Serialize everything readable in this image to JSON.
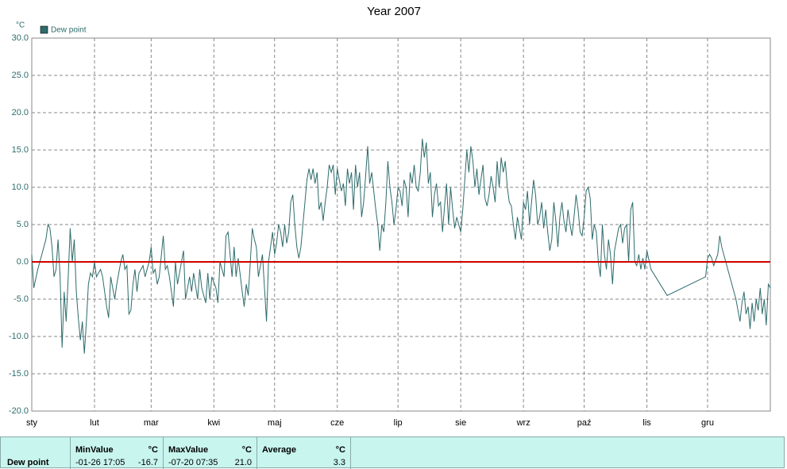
{
  "chart_data": {
    "type": "line",
    "title": "Year 2007",
    "y_unit": "°C",
    "xlim": [
      0,
      365
    ],
    "xticks": [
      {
        "value": 0,
        "label": "sty"
      },
      {
        "value": 31,
        "label": "lut"
      },
      {
        "value": 59,
        "label": "mar"
      },
      {
        "value": 90,
        "label": "kwi"
      },
      {
        "value": 120,
        "label": "maj"
      },
      {
        "value": 151,
        "label": "cze"
      },
      {
        "value": 181,
        "label": "lip"
      },
      {
        "value": 212,
        "label": "sie"
      },
      {
        "value": 243,
        "label": "wrz"
      },
      {
        "value": 273,
        "label": "paź"
      },
      {
        "value": 304,
        "label": "lis"
      },
      {
        "value": 334,
        "label": "gru"
      }
    ],
    "ylim": [
      -20,
      30
    ],
    "yticks": [
      {
        "value": -20,
        "label": "-20.0"
      },
      {
        "value": -15,
        "label": "-15.0"
      },
      {
        "value": -10,
        "label": "-10.0"
      },
      {
        "value": -5,
        "label": "-5.0"
      },
      {
        "value": 0,
        "label": "0.0"
      },
      {
        "value": 5,
        "label": "5.0"
      },
      {
        "value": 10,
        "label": "10.0"
      },
      {
        "value": 15,
        "label": "15.0"
      },
      {
        "value": 20,
        "label": "20.0"
      },
      {
        "value": 25,
        "label": "25.0"
      },
      {
        "value": 30,
        "label": "30.0"
      }
    ],
    "grid": true,
    "reference_line": {
      "value": 0,
      "color": "#d00000"
    },
    "x": [
      0,
      1,
      3,
      5,
      7,
      8,
      9,
      10,
      11,
      12,
      13,
      14,
      15,
      16,
      17,
      18,
      19,
      20,
      21,
      22,
      23,
      24,
      25,
      26,
      27,
      28,
      29,
      30,
      31,
      32,
      34,
      35,
      37,
      38,
      39,
      41,
      42,
      44,
      45,
      46,
      47,
      48,
      49,
      50,
      51,
      52,
      53,
      55,
      56,
      57,
      58,
      59,
      60,
      61,
      62,
      63,
      65,
      66,
      67,
      68,
      70,
      71,
      72,
      73,
      75,
      76,
      78,
      79,
      80,
      82,
      83,
      84,
      86,
      87,
      88,
      89,
      91,
      92,
      93,
      95,
      96,
      97,
      98,
      99,
      100,
      101,
      102,
      104,
      105,
      106,
      107,
      108,
      109,
      110,
      111,
      112,
      114,
      116,
      117,
      118,
      119,
      120,
      121,
      122,
      123,
      124,
      125,
      126,
      127,
      128,
      129,
      130,
      131,
      132,
      133,
      134,
      135,
      136,
      137,
      138,
      139,
      140,
      141,
      142,
      143,
      144,
      145,
      146,
      147,
      148,
      149,
      150,
      151,
      153,
      154,
      155,
      156,
      157,
      158,
      159,
      160,
      161,
      162,
      163,
      164,
      165,
      166,
      167,
      168,
      169,
      170,
      171,
      172,
      173,
      174,
      175,
      176,
      177,
      178,
      179,
      180,
      181,
      182,
      183,
      184,
      185,
      186,
      187,
      188,
      189,
      190,
      191,
      192,
      193,
      194,
      195,
      196,
      197,
      198,
      199,
      200,
      201,
      202,
      203,
      204,
      205,
      206,
      207,
      208,
      209,
      210,
      211,
      212,
      213,
      214,
      215,
      216,
      217,
      218,
      219,
      220,
      221,
      222,
      223,
      224,
      225,
      226,
      227,
      228,
      229,
      230,
      231,
      232,
      233,
      234,
      235,
      236,
      237,
      238,
      239,
      240,
      241,
      242,
      243,
      244,
      245,
      246,
      247,
      248,
      249,
      250,
      251,
      252,
      253,
      254,
      255,
      256,
      257,
      258,
      259,
      260,
      261,
      262,
      263,
      264,
      265,
      266,
      267,
      268,
      269,
      270,
      271,
      272,
      273,
      274,
      275,
      276,
      277,
      278,
      279,
      280,
      281,
      282,
      283,
      284,
      285,
      286,
      287,
      288,
      289,
      290,
      291,
      292,
      293,
      294,
      295,
      296,
      297,
      298,
      299,
      300,
      301,
      302,
      303,
      304,
      306,
      314,
      333,
      334,
      335,
      336,
      337,
      339,
      340,
      341,
      345,
      348,
      350,
      351,
      352,
      353,
      354,
      355,
      356,
      357,
      358,
      359,
      360,
      361,
      362,
      363,
      364,
      365
    ],
    "series": [
      {
        "name": "Dew point",
        "color": "#2e6b6b",
        "values": [
          1,
          -3.5,
          -1,
          1,
          3,
          5,
          4.5,
          2,
          -2,
          -1,
          3,
          -2,
          -11.5,
          -4,
          -8,
          -2,
          4.5,
          0,
          3,
          -4,
          -7.5,
          -10.5,
          -8,
          -12.3,
          -8,
          -3,
          -1.5,
          -2,
          0,
          -2,
          -1,
          -2,
          -6,
          -7.5,
          -2,
          -5,
          -3,
          0,
          1,
          -1,
          -0.5,
          -7,
          -6.5,
          -3,
          -1,
          -4,
          -1.5,
          -0.5,
          -2,
          -1,
          0,
          2,
          -1.5,
          -1,
          -3,
          -2,
          3.5,
          -1,
          -0.5,
          -2,
          -6,
          0,
          -3,
          -1.5,
          1.5,
          -5,
          -2,
          -4,
          -1.5,
          -5,
          -1,
          -3.5,
          -5.5,
          -1.5,
          -5,
          -2,
          -3.5,
          -5.5,
          0,
          -2,
          3.5,
          4,
          1,
          -2,
          2,
          -2,
          0.5,
          -4,
          -6,
          -3,
          -4.5,
          0,
          4.5,
          3,
          2,
          -2,
          1,
          -8,
          0,
          2,
          4,
          1,
          2.5,
          5,
          4,
          2,
          5,
          2.5,
          4,
          8,
          9,
          5,
          2,
          0.5,
          2,
          5,
          8,
          11,
          12.5,
          11,
          12.5,
          10.5,
          12,
          7,
          8,
          5.5,
          8,
          10,
          13,
          12,
          13,
          9,
          12.5,
          9.5,
          10.5,
          7.5,
          12.5,
          10.5,
          12,
          7,
          13,
          10,
          12,
          6,
          8,
          11.5,
          15.5,
          10.5,
          12,
          9.5,
          7,
          5,
          1.5,
          5,
          4,
          8,
          13.5,
          10,
          8,
          5,
          7,
          10,
          9.5,
          7.5,
          11,
          10,
          6,
          12,
          10.5,
          13,
          10,
          9.5,
          12,
          16.5,
          14,
          16,
          10.5,
          12,
          6,
          9,
          10.5,
          7.5,
          8,
          4,
          7.5,
          10.5,
          5,
          10,
          7,
          4.5,
          6,
          5,
          4,
          7,
          11,
          15,
          12,
          15.5,
          13.5,
          10,
          12.5,
          9,
          11,
          13,
          8.5,
          7.5,
          9,
          11.5,
          10,
          8,
          13.5,
          10,
          14,
          12,
          13.5,
          10,
          8,
          7.5,
          5,
          3,
          6,
          4.5,
          3,
          8,
          7,
          9.5,
          5,
          8,
          11,
          9,
          5,
          6,
          8,
          4.5,
          7,
          4,
          1.5,
          3,
          8,
          5.5,
          2,
          6,
          8,
          5.5,
          4,
          7,
          5,
          3.5,
          6,
          9,
          7,
          4,
          3.5,
          6,
          9.5,
          10,
          8.5,
          3,
          5,
          4,
          0,
          -2,
          5,
          1,
          -1,
          3,
          1,
          -3,
          1.5,
          3,
          4.5,
          5,
          2.5,
          4.5,
          5,
          0,
          7,
          8,
          0,
          -0.5,
          1,
          -1,
          0.5,
          -1,
          1.5,
          -1,
          -4.5,
          -2,
          0.5,
          1,
          0.5,
          -0.5,
          1,
          3.5,
          2,
          -2,
          -5,
          -8,
          -5.5,
          -4,
          -7,
          -6,
          -9,
          -5.5,
          -8,
          -5,
          -6.5,
          -3.5,
          -7,
          -5,
          -8.5,
          -3,
          -3.5
        ]
      }
    ]
  },
  "stats": {
    "row_label": "Dew point",
    "columns": [
      {
        "title": "MinValue",
        "unit": "°C",
        "time": "-01-26 17:05",
        "value": "-16.7"
      },
      {
        "title": "MaxValue",
        "unit": "°C",
        "time": "-07-20 07:35",
        "value": "21.0"
      },
      {
        "title": "Average",
        "unit": "°C",
        "value": "3.3"
      }
    ]
  }
}
